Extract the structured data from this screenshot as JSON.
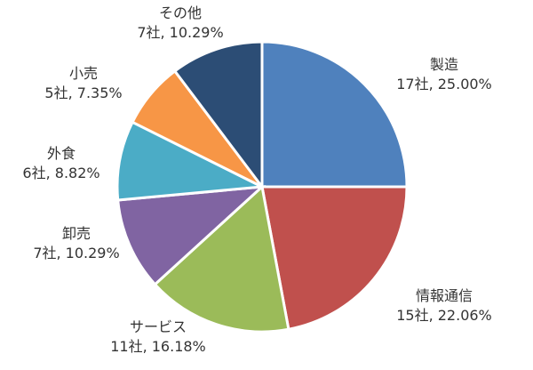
{
  "chart_data": {
    "type": "pie",
    "title": "",
    "start_angle_deg": 0,
    "direction": "clockwise",
    "slices": [
      {
        "category": "製造",
        "count_label": "17社",
        "percent_label": "25.00%",
        "value": 25.0,
        "color": "#4F81BD"
      },
      {
        "category": "情報通信",
        "count_label": "15社",
        "percent_label": "22.06%",
        "value": 22.06,
        "color": "#C0504D"
      },
      {
        "category": "サービス",
        "count_label": "11社",
        "percent_label": "16.18%",
        "value": 16.18,
        "color": "#9BBB59"
      },
      {
        "category": "卸売",
        "count_label": "7社",
        "percent_label": "10.29%",
        "value": 10.29,
        "color": "#8064A2"
      },
      {
        "category": "外食",
        "count_label": "6社",
        "percent_label": "8.82%",
        "value": 8.82,
        "color": "#4BACC6"
      },
      {
        "category": "小売",
        "count_label": "5社",
        "percent_label": "7.35%",
        "value": 7.35,
        "color": "#F79646"
      },
      {
        "category": "その他",
        "count_label": "7社",
        "percent_label": "10.29%",
        "value": 10.29,
        "color": "#2C4D75"
      }
    ]
  }
}
